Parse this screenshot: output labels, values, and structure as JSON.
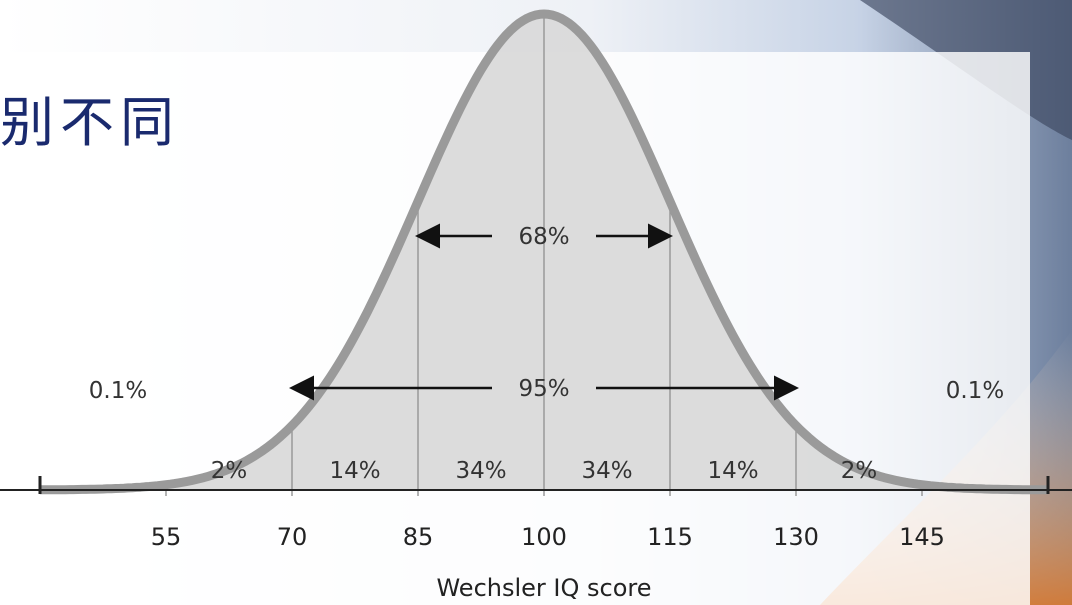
{
  "slide": {
    "title_fragment": "别不同",
    "colors": {
      "title": "#1a2a6e",
      "curve": "#9a9a9a",
      "band_fill": "#d8d8d8",
      "tail_fill": "#555555"
    }
  },
  "chart_data": {
    "type": "area",
    "title": "",
    "xlabel": "Wechsler IQ score",
    "ylabel": "",
    "distribution": {
      "type": "normal",
      "mean": 100,
      "sd": 15
    },
    "xlim": [
      40,
      160
    ],
    "x_ticks": [
      55,
      70,
      85,
      100,
      115,
      130,
      145
    ],
    "x_tick_labels": [
      "55",
      "70",
      "85",
      "100",
      "115",
      "130",
      "145"
    ],
    "band_dividers": [
      55,
      70,
      85,
      100,
      115,
      130,
      145
    ],
    "bands": [
      {
        "from": 55,
        "to": 70,
        "percent": 2,
        "label": "2%"
      },
      {
        "from": 70,
        "to": 85,
        "percent": 14,
        "label": "14%"
      },
      {
        "from": 85,
        "to": 100,
        "percent": 34,
        "label": "34%"
      },
      {
        "from": 100,
        "to": 115,
        "percent": 34,
        "label": "34%"
      },
      {
        "from": 115,
        "to": 130,
        "percent": 14,
        "label": "14%"
      },
      {
        "from": 130,
        "to": 145,
        "percent": 2,
        "label": "2%"
      }
    ],
    "tails": [
      {
        "side": "left",
        "to": 55,
        "percent": 0.1,
        "label": "0.1%"
      },
      {
        "side": "right",
        "from": 145,
        "percent": 0.1,
        "label": "0.1%"
      }
    ],
    "spans": [
      {
        "from": 85,
        "to": 115,
        "percent": 68,
        "label": "68%"
      },
      {
        "from": 70,
        "to": 130,
        "percent": 95,
        "label": "95%"
      }
    ],
    "grid": false,
    "legend": "none"
  }
}
